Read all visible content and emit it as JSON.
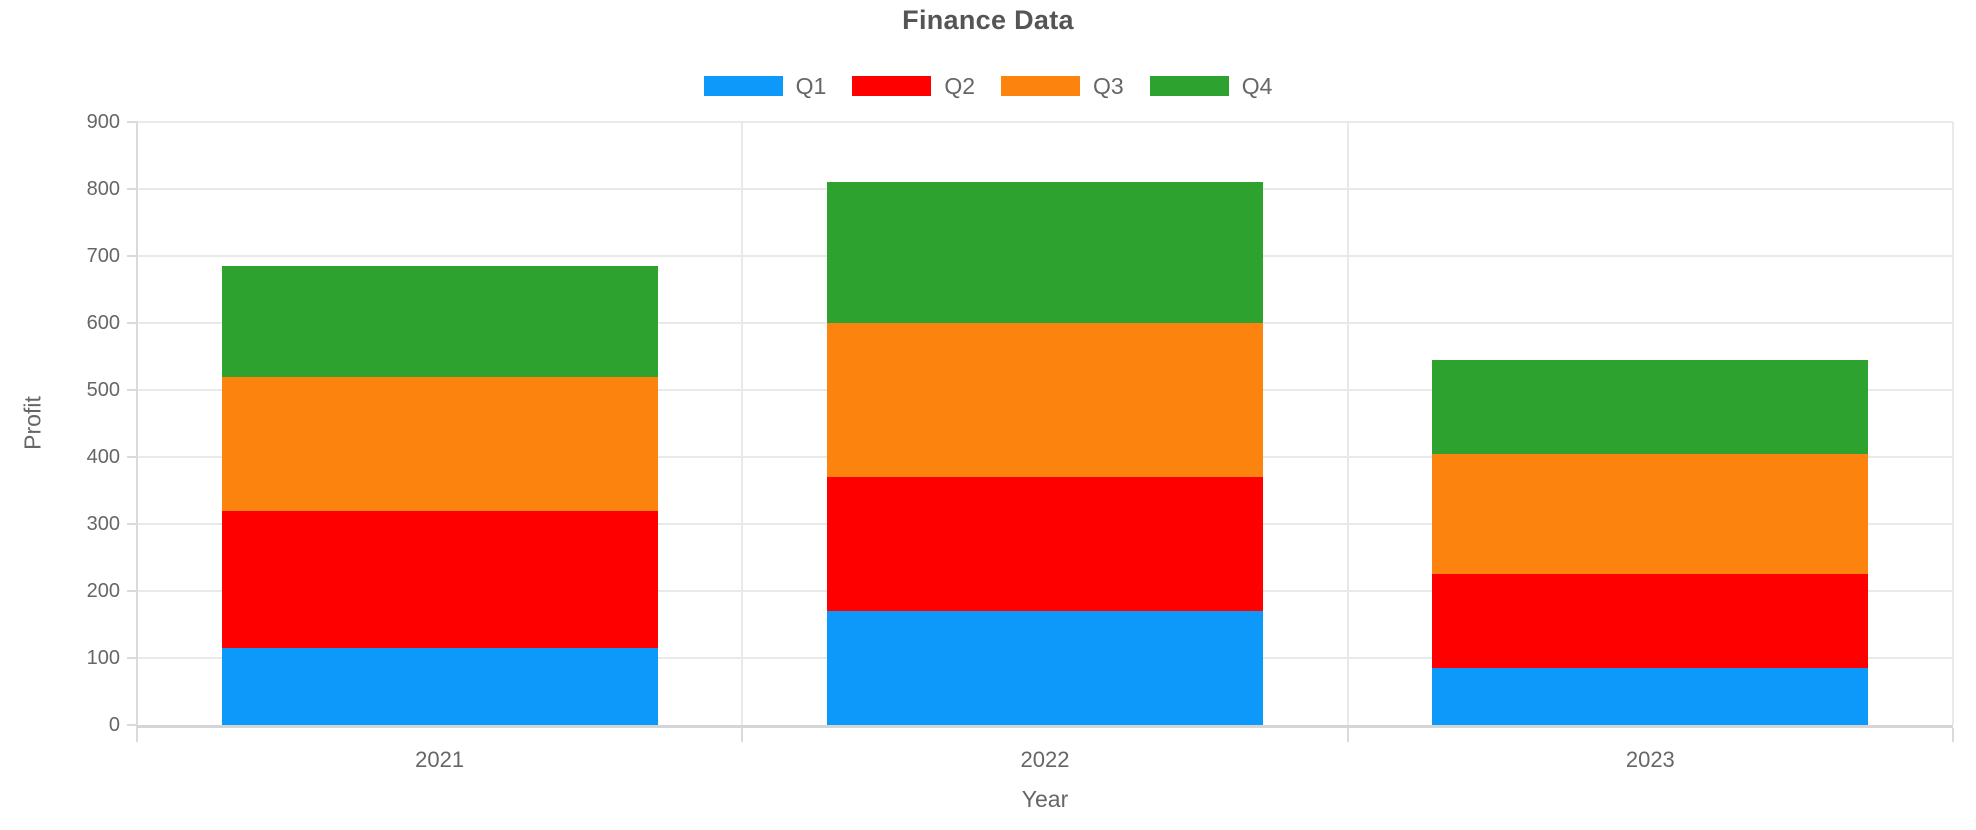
{
  "chart_data": {
    "type": "bar",
    "stacked": true,
    "title": "Finance Data",
    "xlabel": "Year",
    "ylabel": "Profit",
    "categories": [
      "2021",
      "2022",
      "2023"
    ],
    "series": [
      {
        "name": "Q1",
        "color": "#0D99FA",
        "values": [
          115,
          170,
          85
        ]
      },
      {
        "name": "Q2",
        "color": "#FF0000",
        "values": [
          205,
          200,
          140
        ]
      },
      {
        "name": "Q3",
        "color": "#FC830E",
        "values": [
          200,
          230,
          180
        ]
      },
      {
        "name": "Q4",
        "color": "#2EA22E",
        "values": [
          165,
          210,
          140
        ]
      }
    ],
    "stack_totals": [
      685,
      810,
      545
    ],
    "ylim": [
      0,
      900
    ],
    "y_ticks": [
      "0",
      "100",
      "200",
      "300",
      "400",
      "500",
      "600",
      "700",
      "800",
      "900"
    ],
    "grid": true,
    "legend_position": "top",
    "colors": {
      "tick_text": "#666666",
      "title_text": "#555555",
      "gridline": "#E9E9E9",
      "axis_line": "#D5D5D5",
      "background": "#FFFFFF"
    }
  }
}
